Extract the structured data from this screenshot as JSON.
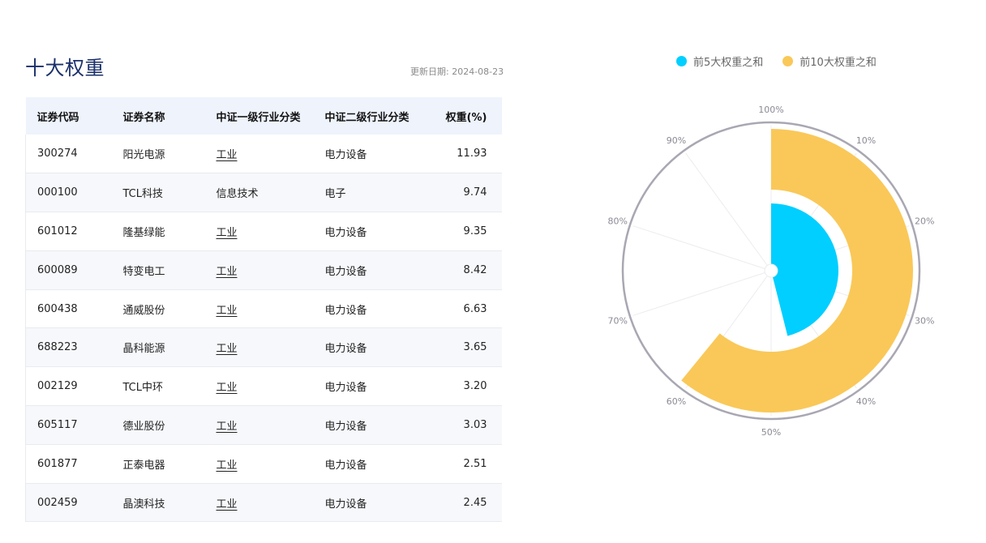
{
  "title": "十大权重",
  "update_date": "更新日期: 2024-08-23",
  "table": {
    "headers": [
      "证券代码",
      "证券名称",
      "中证一级行业分类",
      "中证二级行业分类",
      "权重(%)"
    ],
    "rows": [
      [
        "300274",
        "阳光电源",
        "工业",
        "电力设备",
        "11.93"
      ],
      [
        "000100",
        "TCL科技",
        "信息技术",
        "电子",
        "9.74"
      ],
      [
        "601012",
        "隆基绿能",
        "工业",
        "电力设备",
        "9.35"
      ],
      [
        "600089",
        "特变电工",
        "工业",
        "电力设备",
        "8.42"
      ],
      [
        "600438",
        "通威股份",
        "工业",
        "电力设备",
        "6.63"
      ],
      [
        "688223",
        "晶科能源",
        "工业",
        "电力设备",
        "3.65"
      ],
      [
        "002129",
        "TCL中环",
        "工业",
        "电力设备",
        "3.20"
      ],
      [
        "605117",
        "德业股份",
        "工业",
        "电力设备",
        "3.03"
      ],
      [
        "601877",
        "正泰电器",
        "工业",
        "电力设备",
        "2.51"
      ],
      [
        "002459",
        "晶澳科技",
        "工业",
        "电力设备",
        "2.45"
      ]
    ]
  },
  "chart_data": {
    "type": "polar_bar",
    "series": [
      {
        "name": "前5大权重之和",
        "value": 46.07,
        "color": "#00cfff"
      },
      {
        "name": "前10大权重之和",
        "value": 60.91,
        "color": "#fac858"
      }
    ],
    "angle_axis": {
      "min": 0,
      "max": 100,
      "tick_labels": [
        "100%",
        "10%",
        "20%",
        "30%",
        "40%",
        "50%",
        "60%",
        "70%",
        "80%",
        "90%"
      ]
    },
    "legend_position": "top"
  }
}
